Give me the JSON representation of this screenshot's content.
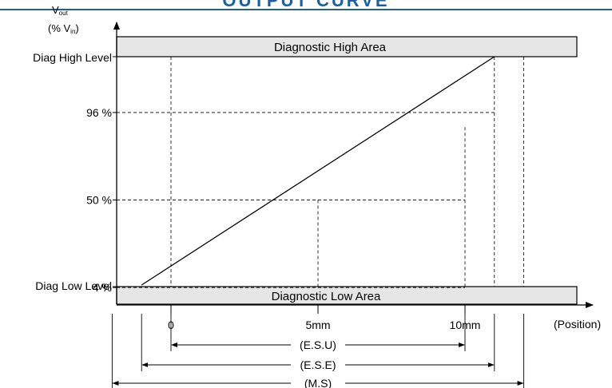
{
  "header": {
    "title": "OUTPUT CURVE",
    "rule_color": "#1f5f9e",
    "title_color": "#1a5fa8"
  },
  "chart_data": {
    "type": "line",
    "x": [
      -1,
      11
    ],
    "y": [
      4,
      96
    ],
    "x_ticks": [
      {
        "value": 0,
        "label": "0"
      },
      {
        "value": 5,
        "label": "5mm"
      },
      {
        "value": 10,
        "label": "10mm"
      }
    ],
    "y_ticks": [
      {
        "value": 4,
        "label": "4 %"
      },
      {
        "value": 50,
        "label": "50 %"
      },
      {
        "value": 96,
        "label": "96 %"
      }
    ],
    "y_level_labels": {
      "high": "Diag High Level",
      "low": "Diag Low Level"
    },
    "ylabel_main": "V",
    "ylabel_main_sub": "out",
    "ylabel_unit_pre": "(% V",
    "ylabel_unit_sub": "in",
    "ylabel_unit_post": ")",
    "xlabel": "(Position)",
    "areas": {
      "high": "Diagnostic High Area",
      "low": "Diagnostic Low Area"
    },
    "spans": [
      {
        "label": "(E.S.U)",
        "from": 0,
        "to": 10
      },
      {
        "label": "(E.S.E)",
        "from": -1,
        "to": 11
      },
      {
        "label": "(M.S)",
        "from": -2,
        "to": 12
      }
    ],
    "area_color": "#e6e6e6",
    "grid": false
  }
}
